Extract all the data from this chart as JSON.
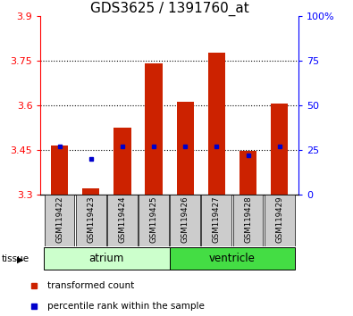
{
  "title": "GDS3625 / 1391760_at",
  "samples": [
    "GSM119422",
    "GSM119423",
    "GSM119424",
    "GSM119425",
    "GSM119426",
    "GSM119427",
    "GSM119428",
    "GSM119429"
  ],
  "bar_base": 3.3,
  "bar_tops": [
    3.465,
    3.32,
    3.525,
    3.74,
    3.61,
    3.775,
    3.445,
    3.605
  ],
  "percentile_ranks": [
    27,
    20,
    27,
    27,
    27,
    27,
    22,
    27
  ],
  "ylim_left": [
    3.3,
    3.9
  ],
  "ylim_right": [
    0,
    100
  ],
  "yticks_left": [
    3.3,
    3.45,
    3.6,
    3.75,
    3.9
  ],
  "yticks_right": [
    0,
    25,
    50,
    75,
    100
  ],
  "ytick_labels_right": [
    "0",
    "25",
    "50",
    "75",
    "100%"
  ],
  "bar_color": "#cc2200",
  "percentile_color": "#0000cc",
  "title_fontsize": 11,
  "tick_fontsize": 8,
  "bar_width": 0.55,
  "atrium_color": "#ccffcc",
  "ventricle_color": "#44dd44",
  "xtick_bg": "#cccccc"
}
